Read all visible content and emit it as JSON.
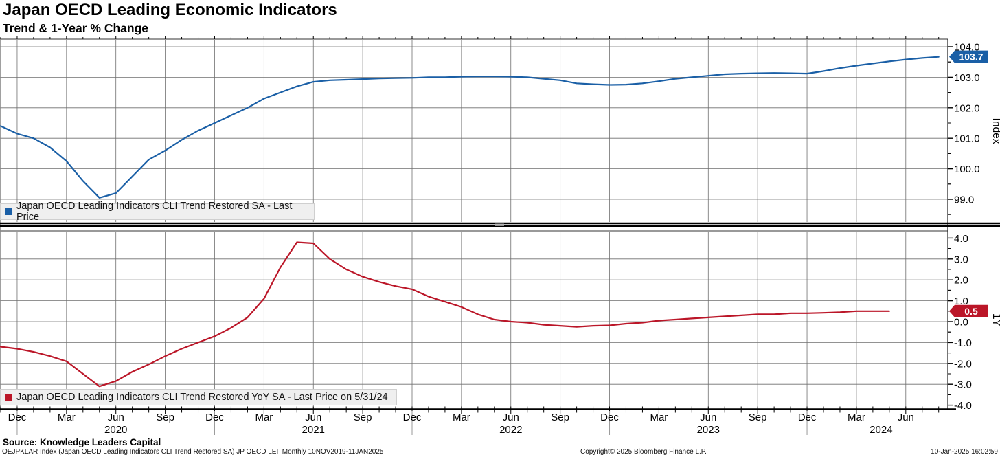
{
  "header": {
    "title": "Japan OECD Leading Economic Indicators",
    "subtitle": "Trend & 1-Year % Change"
  },
  "footer": {
    "source": "Source: Knowledge Leaders Capital",
    "ticker_line": "OEJPKLAR Index (Japan OECD Leading Indicators CLI Trend Restored SA) JP OECD LEI  Monthly 10NOV2019-11JAN2025",
    "copyright": "Copyright© 2025 Bloomberg Finance L.P.",
    "datetime": "10-Jan-2025 16:02:59"
  },
  "chart_data": {
    "type": "line",
    "frequency": "monthly",
    "x_start": "2019-11",
    "x_tick_labels": [
      "Dec",
      "Mar",
      "Jun",
      "Sep",
      "Dec",
      "Mar",
      "Jun",
      "Sep",
      "Dec",
      "Mar",
      "Jun",
      "Sep",
      "Dec",
      "Mar",
      "Jun",
      "Sep",
      "Dec",
      "Mar",
      "Jun"
    ],
    "x_years": [
      {
        "label": "2020",
        "month_index": 7
      },
      {
        "label": "2021",
        "month_index": 19
      },
      {
        "label": "2022",
        "month_index": 31
      },
      {
        "label": "2023",
        "month_index": 43
      },
      {
        "label": "2024",
        "month_index": 53.5
      }
    ],
    "year_separator_month_indices": [
      1,
      13,
      25,
      37,
      49
    ],
    "panels": [
      {
        "id": "trend",
        "legend": "Japan OECD Leading Indicators CLI Trend Restored SA - Last Price",
        "axis_title": "Index",
        "color": "#1a5fa6",
        "last_price_label": "103.7",
        "y_tick_labels": [
          "104.0",
          "103.0",
          "102.0",
          "101.0",
          "100.0",
          "99.0"
        ],
        "ylim": [
          98.2,
          104.25
        ],
        "values": [
          101.4,
          101.15,
          101.0,
          100.7,
          100.25,
          99.6,
          99.05,
          99.2,
          99.75,
          100.3,
          100.6,
          100.95,
          101.25,
          101.5,
          101.75,
          102.0,
          102.3,
          102.5,
          102.7,
          102.85,
          102.9,
          102.92,
          102.94,
          102.96,
          102.97,
          102.98,
          103.0,
          103.0,
          103.02,
          103.03,
          103.03,
          103.02,
          103.0,
          102.95,
          102.9,
          102.8,
          102.77,
          102.75,
          102.76,
          102.8,
          102.87,
          102.95,
          103.0,
          103.05,
          103.1,
          103.12,
          103.13,
          103.14,
          103.13,
          103.12,
          103.2,
          103.3,
          103.38,
          103.45,
          103.52,
          103.58,
          103.63,
          103.67
        ]
      },
      {
        "id": "yoy",
        "legend": "Japan OECD Leading Indicators CLI Trend Restored YoY SA - Last Price on 5/31/24",
        "axis_title": "1Y",
        "color": "#bb1628",
        "last_price_label": "0.5",
        "y_tick_labels": [
          "4.0",
          "3.0",
          "2.0",
          "1.0",
          "0.0",
          "-1.0",
          "-2.0",
          "-3.0",
          "-4.0"
        ],
        "ylim": [
          -4.2,
          4.35
        ],
        "values": [
          -1.2,
          -1.3,
          -1.45,
          -1.65,
          -1.9,
          -2.5,
          -3.1,
          -2.85,
          -2.4,
          -2.05,
          -1.65,
          -1.3,
          -1.0,
          -0.7,
          -0.3,
          0.2,
          1.1,
          2.6,
          3.8,
          3.75,
          3.0,
          2.5,
          2.15,
          1.9,
          1.7,
          1.55,
          1.2,
          0.95,
          0.7,
          0.35,
          0.1,
          0.0,
          -0.05,
          -0.15,
          -0.2,
          -0.25,
          -0.2,
          -0.18,
          -0.1,
          -0.05,
          0.05,
          0.1,
          0.15,
          0.2,
          0.25,
          0.3,
          0.35,
          0.35,
          0.4,
          0.4,
          0.42,
          0.45,
          0.5,
          0.5,
          0.5
        ]
      }
    ]
  }
}
